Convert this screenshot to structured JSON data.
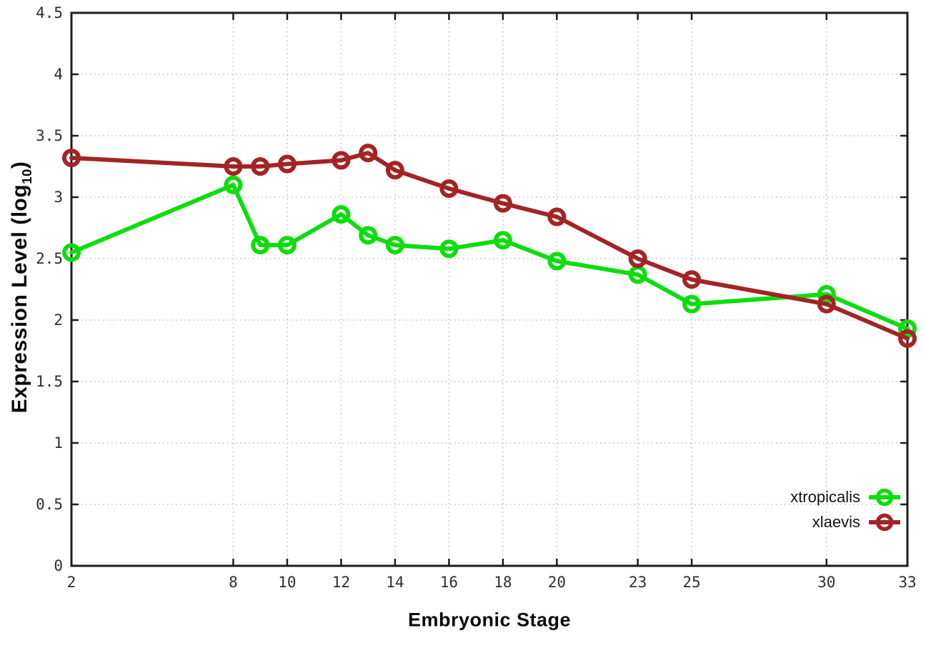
{
  "chart_data": {
    "type": "line",
    "title": "",
    "xlabel": "Embryonic Stage",
    "ylabel": "Expression Level (log10)",
    "ylabel_parts": {
      "main": "Expression Level (log",
      "subscript": "10",
      "close": ")"
    },
    "x": [
      2,
      8,
      9,
      10,
      12,
      13,
      14,
      16,
      18,
      20,
      23,
      25,
      30,
      33
    ],
    "series": [
      {
        "name": "xtropicalis",
        "color": "#0ddd0d",
        "values": [
          2.55,
          3.1,
          2.61,
          2.61,
          2.86,
          2.69,
          2.61,
          2.58,
          2.65,
          2.48,
          2.37,
          2.13,
          2.21,
          1.93
        ]
      },
      {
        "name": "xlaevis",
        "color": "#a32424",
        "values": [
          3.32,
          3.25,
          3.25,
          3.27,
          3.3,
          3.36,
          3.22,
          3.07,
          2.95,
          2.84,
          2.5,
          2.33,
          2.13,
          1.85
        ]
      }
    ],
    "xlim": [
      2,
      33
    ],
    "ylim": [
      0,
      4.5
    ],
    "x_ticks": [
      2,
      8,
      10,
      12,
      14,
      16,
      18,
      20,
      23,
      25,
      30,
      33
    ],
    "y_ticks": [
      0,
      0.5,
      1,
      1.5,
      2,
      2.5,
      3,
      3.5,
      4,
      4.5
    ],
    "grid": true,
    "grid_color": "#bdbdbd",
    "axis_color": "#1c1c1c",
    "tick_label_color": "#2e2e2e",
    "marker": "open-circle",
    "legend_position": "bottom-right"
  }
}
